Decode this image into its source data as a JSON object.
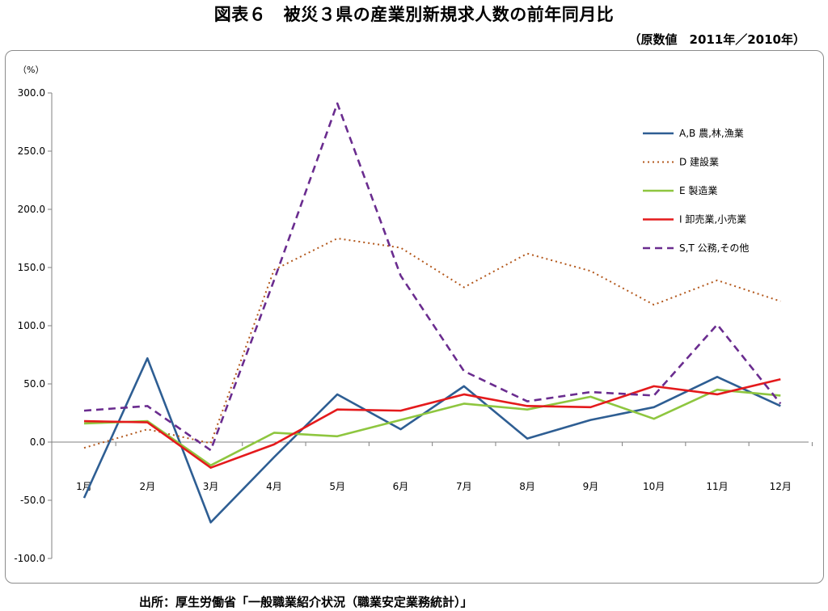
{
  "title": "図表６　被災３県の産業別新規求人数の前年同月比",
  "subtitle": "（原数値　2011年／2010年）",
  "source": "出所：厚生労働省「一般職業紹介状況（職業安定業務統計）」",
  "chart_data": {
    "type": "line",
    "yunit": "（%）",
    "ylim": [
      -100,
      300
    ],
    "yticks": [
      "300.0",
      "250.0",
      "200.0",
      "150.0",
      "100.0",
      "50.0",
      "0.0",
      "-50.0",
      "-100.0"
    ],
    "categories": [
      "1月",
      "2月",
      "3月",
      "4月",
      "5月",
      "6月",
      "7月",
      "8月",
      "9月",
      "10月",
      "11月",
      "12月"
    ],
    "legend_position": "top-right",
    "grid": false,
    "series": [
      {
        "name": "A,B 農,林,漁業",
        "color": "#2e5e93",
        "dash": "solid",
        "values": [
          -48,
          72,
          -69,
          -13,
          41,
          11,
          48,
          3,
          19,
          30,
          56,
          31
        ]
      },
      {
        "name": "D 建設業",
        "color": "#b3581c",
        "dash": "dotted",
        "values": [
          -5,
          11,
          -1,
          148,
          175,
          167,
          133,
          162,
          147,
          118,
          139,
          121
        ]
      },
      {
        "name": "E 製造業",
        "color": "#8ec63f",
        "dash": "solid",
        "values": [
          16,
          18,
          -20,
          8,
          5,
          19,
          33,
          28,
          39,
          20,
          45,
          40
        ]
      },
      {
        "name": "I 卸売業,小売業",
        "color": "#e41a1c",
        "dash": "solid",
        "values": [
          18,
          17,
          -22,
          -2,
          28,
          27,
          41,
          31,
          30,
          48,
          41,
          54
        ]
      },
      {
        "name": "S,T 公務,その他",
        "color": "#6a2c8f",
        "dash": "dashed",
        "values": [
          27,
          31,
          -7,
          139,
          291,
          143,
          61,
          35,
          43,
          40,
          101,
          33
        ]
      }
    ]
  }
}
